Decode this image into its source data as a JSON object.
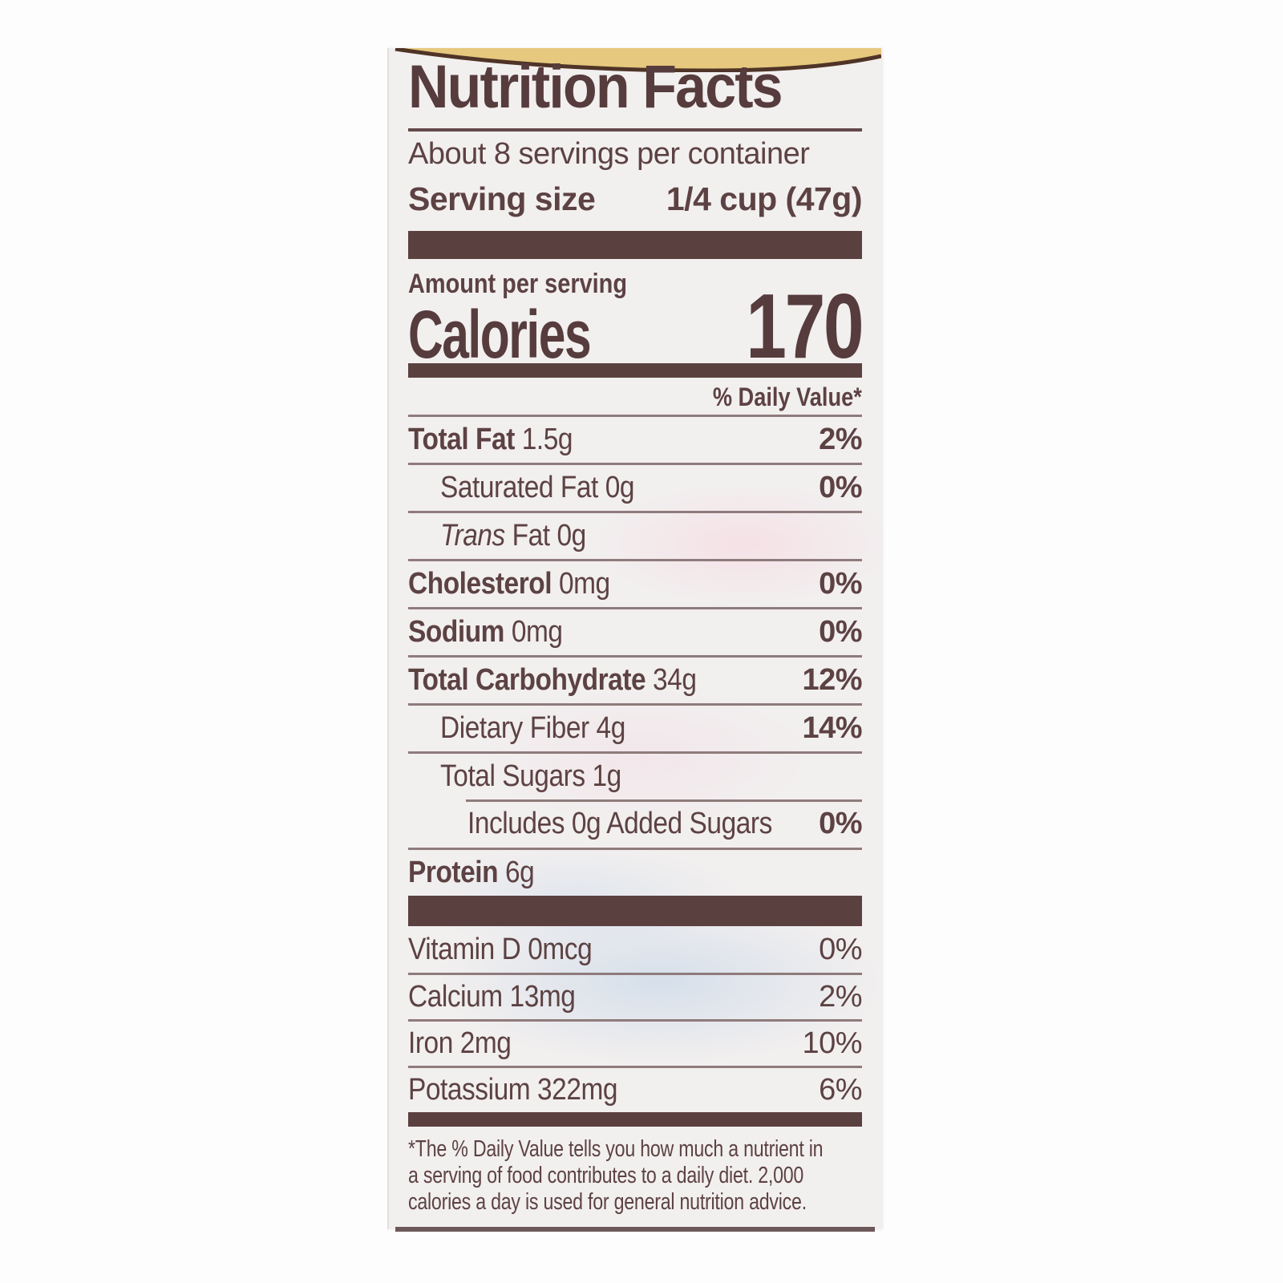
{
  "label": {
    "title": "Nutrition Facts",
    "servings_per_container": "About 8 servings per container",
    "serving_size_label": "Serving size",
    "serving_size_value": "1/4 cup (47g)",
    "amount_per_serving": "Amount per serving",
    "calories_label": "Calories",
    "calories_value": "170",
    "daily_value_header": "% Daily Value*",
    "nutrients": [
      {
        "name": "Total Fat",
        "bold": true,
        "amount": "1.5g",
        "dv": "2%",
        "dv_bold": true,
        "indent": 0
      },
      {
        "name": "Saturated Fat",
        "bold": false,
        "amount": "0g",
        "dv": "0%",
        "dv_bold": true,
        "indent": 1
      },
      {
        "italic": "Trans",
        "name": " Fat",
        "bold": false,
        "amount": "0g",
        "dv": "",
        "indent": 1
      },
      {
        "name": "Cholesterol",
        "bold": true,
        "amount": "0mg",
        "dv": "0%",
        "dv_bold": true,
        "indent": 0
      },
      {
        "name": "Sodium",
        "bold": true,
        "amount": "0mg",
        "dv": "0%",
        "dv_bold": true,
        "indent": 0
      },
      {
        "name": "Total Carbohydrate",
        "bold": true,
        "amount": "34g",
        "dv": "12%",
        "dv_bold": true,
        "indent": 0
      },
      {
        "name": "Dietary Fiber",
        "bold": false,
        "amount": "4g",
        "dv": "14%",
        "dv_bold": true,
        "indent": 1
      },
      {
        "name": "Total Sugars",
        "bold": false,
        "amount": "1g",
        "dv": "",
        "indent": 1
      },
      {
        "name": "Includes 0g Added Sugars",
        "bold": false,
        "amount": "",
        "dv": "0%",
        "dv_bold": true,
        "indent": 2,
        "rule": "indent"
      },
      {
        "name": "Protein",
        "bold": true,
        "amount": "6g",
        "dv": "",
        "indent": 0
      }
    ],
    "vitamins": [
      {
        "name": "Vitamin D",
        "amount": "0mcg",
        "dv": "0%"
      },
      {
        "name": "Calcium",
        "amount": "13mg",
        "dv": "2%"
      },
      {
        "name": "Iron",
        "amount": "2mg",
        "dv": "10%"
      },
      {
        "name": "Potassium",
        "amount": "322mg",
        "dv": "6%"
      }
    ],
    "footnote": "*The % Daily Value tells you how much a nutrient in\na serving of food contributes to a daily diet. 2,000\ncalories a day is used for general nutrition advice."
  },
  "colors": {
    "ink": "#5d4243",
    "bar": "#5a413f",
    "hairline": "#8f7b7c",
    "gold_band": "#e6c87e",
    "wave_line": "#4f3427",
    "label_bg": "#f2efef"
  }
}
